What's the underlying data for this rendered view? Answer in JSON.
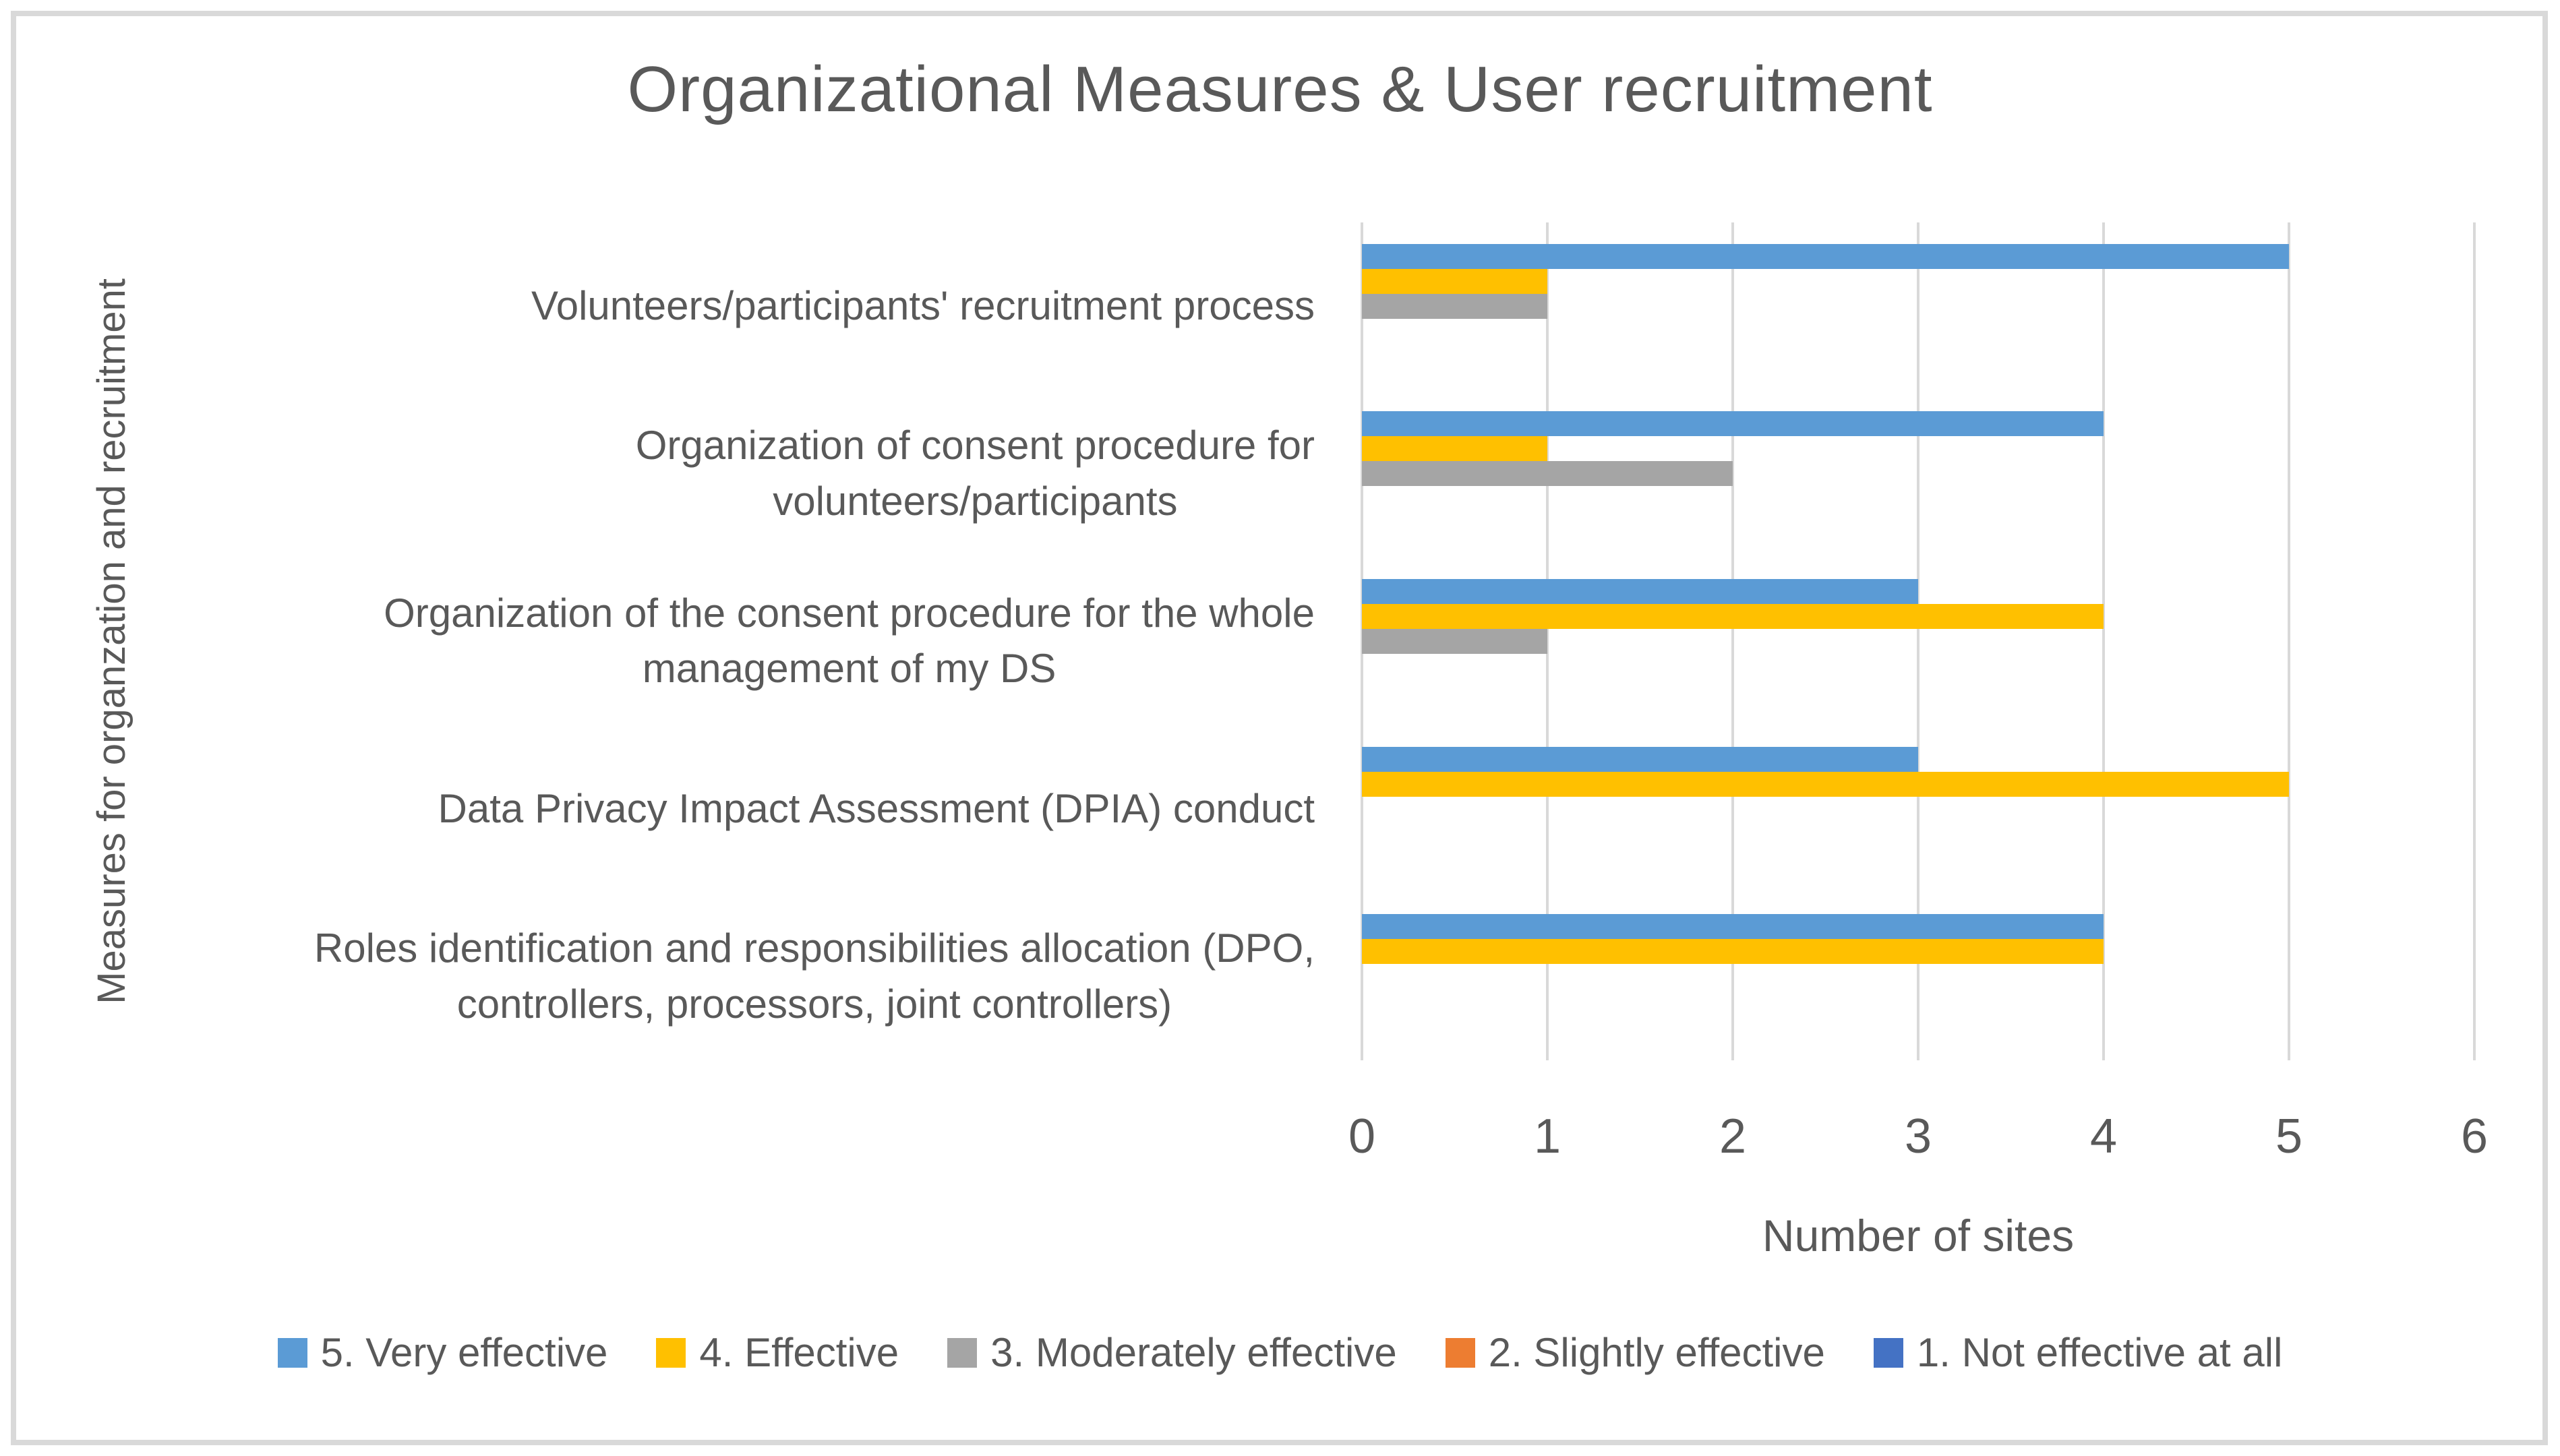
{
  "chart_data": {
    "type": "bar",
    "orientation": "horizontal",
    "title": "Organizational Measures & User recruitment",
    "xlabel": "Number of sites",
    "ylabel": "Measures for organzation and recruitment",
    "xlim": [
      0,
      6
    ],
    "x_ticks": [
      0,
      1,
      2,
      3,
      4,
      5,
      6
    ],
    "grid": true,
    "legend_position": "bottom",
    "categories": [
      "Volunteers/participants' recruitment process",
      "Organization of consent procedure for volunteers/participants",
      "Organization of the consent procedure for the whole management of my DS",
      "Data Privacy Impact Assessment (DPIA) conduct",
      "Roles identification and responsibilities allocation (DPO, controllers, processors, joint controllers)"
    ],
    "category_display_lines": [
      [
        "Volunteers/participants' recruitment process"
      ],
      [
        "Organization of consent procedure for",
        "volunteers/participants"
      ],
      [
        "Organization of the consent procedure for the whole",
        "management of my DS"
      ],
      [
        "Data Privacy Impact Assessment (DPIA) conduct"
      ],
      [
        "Roles identification and responsibilities allocation (DPO,",
        "controllers, processors, joint controllers)"
      ]
    ],
    "series": [
      {
        "name": "5. Very effective",
        "color": "#5B9BD5",
        "values": [
          5,
          4,
          3,
          3,
          4
        ]
      },
      {
        "name": "4. Effective",
        "color": "#FFC000",
        "values": [
          1,
          1,
          4,
          5,
          4
        ]
      },
      {
        "name": "3. Moderately effective",
        "color": "#A5A5A5",
        "values": [
          1,
          2,
          1,
          0,
          0
        ]
      },
      {
        "name": "2. Slightly effective",
        "color": "#ED7D31",
        "values": [
          0,
          0,
          0,
          0,
          0
        ]
      },
      {
        "name": "1. Not effective at all",
        "color": "#4472C4",
        "values": [
          0,
          0,
          0,
          0,
          0
        ]
      }
    ]
  },
  "style": {
    "text_color": "#595959",
    "gridline_color": "#D9D9D9",
    "border_color": "#D9D9D9",
    "background": "#FFFFFF"
  }
}
